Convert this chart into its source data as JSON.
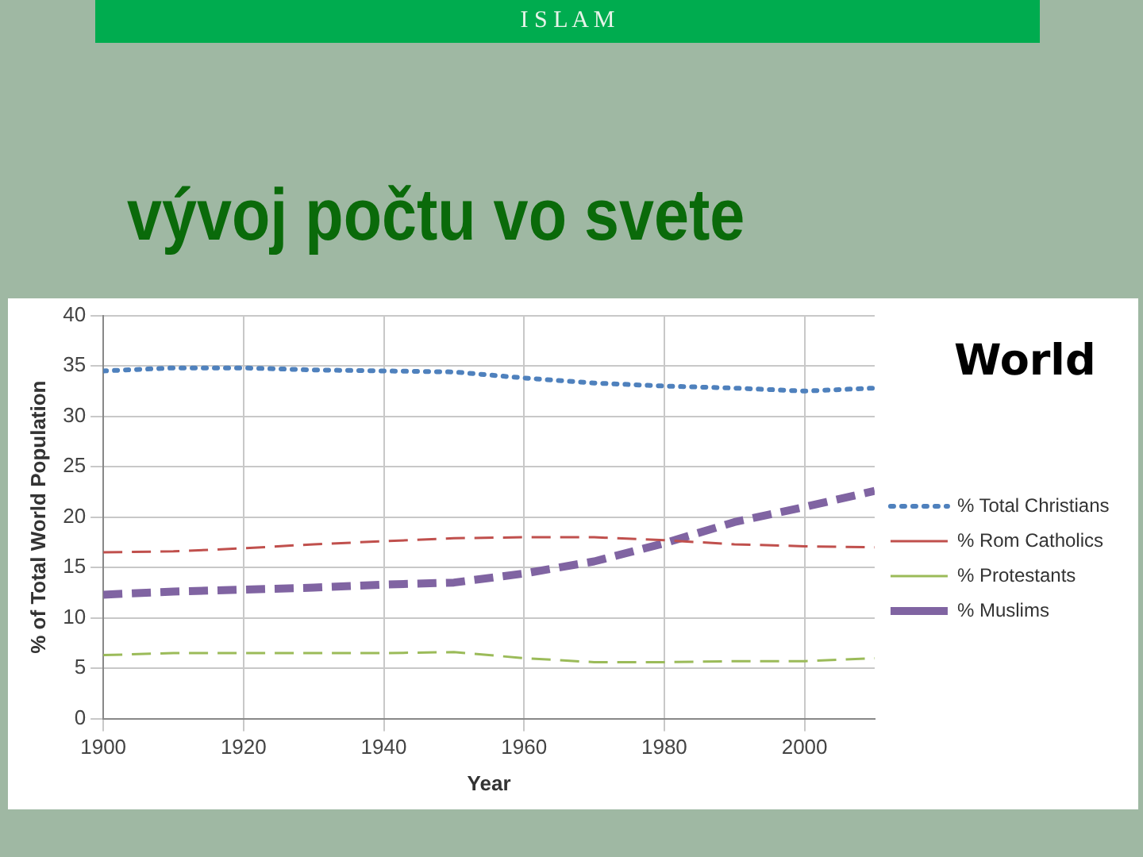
{
  "chart_data": {
    "type": "line",
    "title": "vývoj počtu vo svete",
    "subtitle": "World",
    "annotations": [
      "I S L A M"
    ],
    "xlabel": "Year",
    "ylabel": "% of Total World Population",
    "x": [
      1900,
      1910,
      1920,
      1930,
      1940,
      1950,
      1960,
      1970,
      1980,
      1990,
      2000,
      2010
    ],
    "series": [
      {
        "name": "% Total Christians",
        "color": "#4f81bd",
        "line_style": "dotted",
        "values": [
          34.5,
          34.8,
          34.8,
          34.6,
          34.5,
          34.4,
          33.8,
          33.3,
          33.0,
          32.8,
          32.5,
          32.8
        ]
      },
      {
        "name": "% Rom Catholics",
        "color": "#c0504d",
        "line_style": "dashed",
        "values": [
          16.5,
          16.6,
          16.9,
          17.3,
          17.6,
          17.9,
          18.0,
          18.0,
          17.7,
          17.3,
          17.1,
          17.0
        ]
      },
      {
        "name": "% Protestants",
        "color": "#9bbb59",
        "line_style": "dashed",
        "values": [
          6.3,
          6.5,
          6.5,
          6.5,
          6.5,
          6.6,
          6.0,
          5.6,
          5.6,
          5.7,
          5.7,
          6.0
        ]
      },
      {
        "name": "% Muslims",
        "color": "#8064a2",
        "line_style": "dashed",
        "values": [
          12.3,
          12.6,
          12.8,
          13.0,
          13.3,
          13.5,
          14.4,
          15.6,
          17.4,
          19.5,
          21.0,
          22.6
        ]
      }
    ],
    "xlim": [
      1900,
      2010
    ],
    "xticks": [
      1900,
      1920,
      1940,
      1960,
      1980,
      2000
    ],
    "ylim": [
      0,
      40
    ],
    "yticks": [
      0,
      5,
      10,
      15,
      20,
      25,
      30,
      35,
      40
    ],
    "grid": true,
    "legend": "right",
    "marker": "none"
  }
}
